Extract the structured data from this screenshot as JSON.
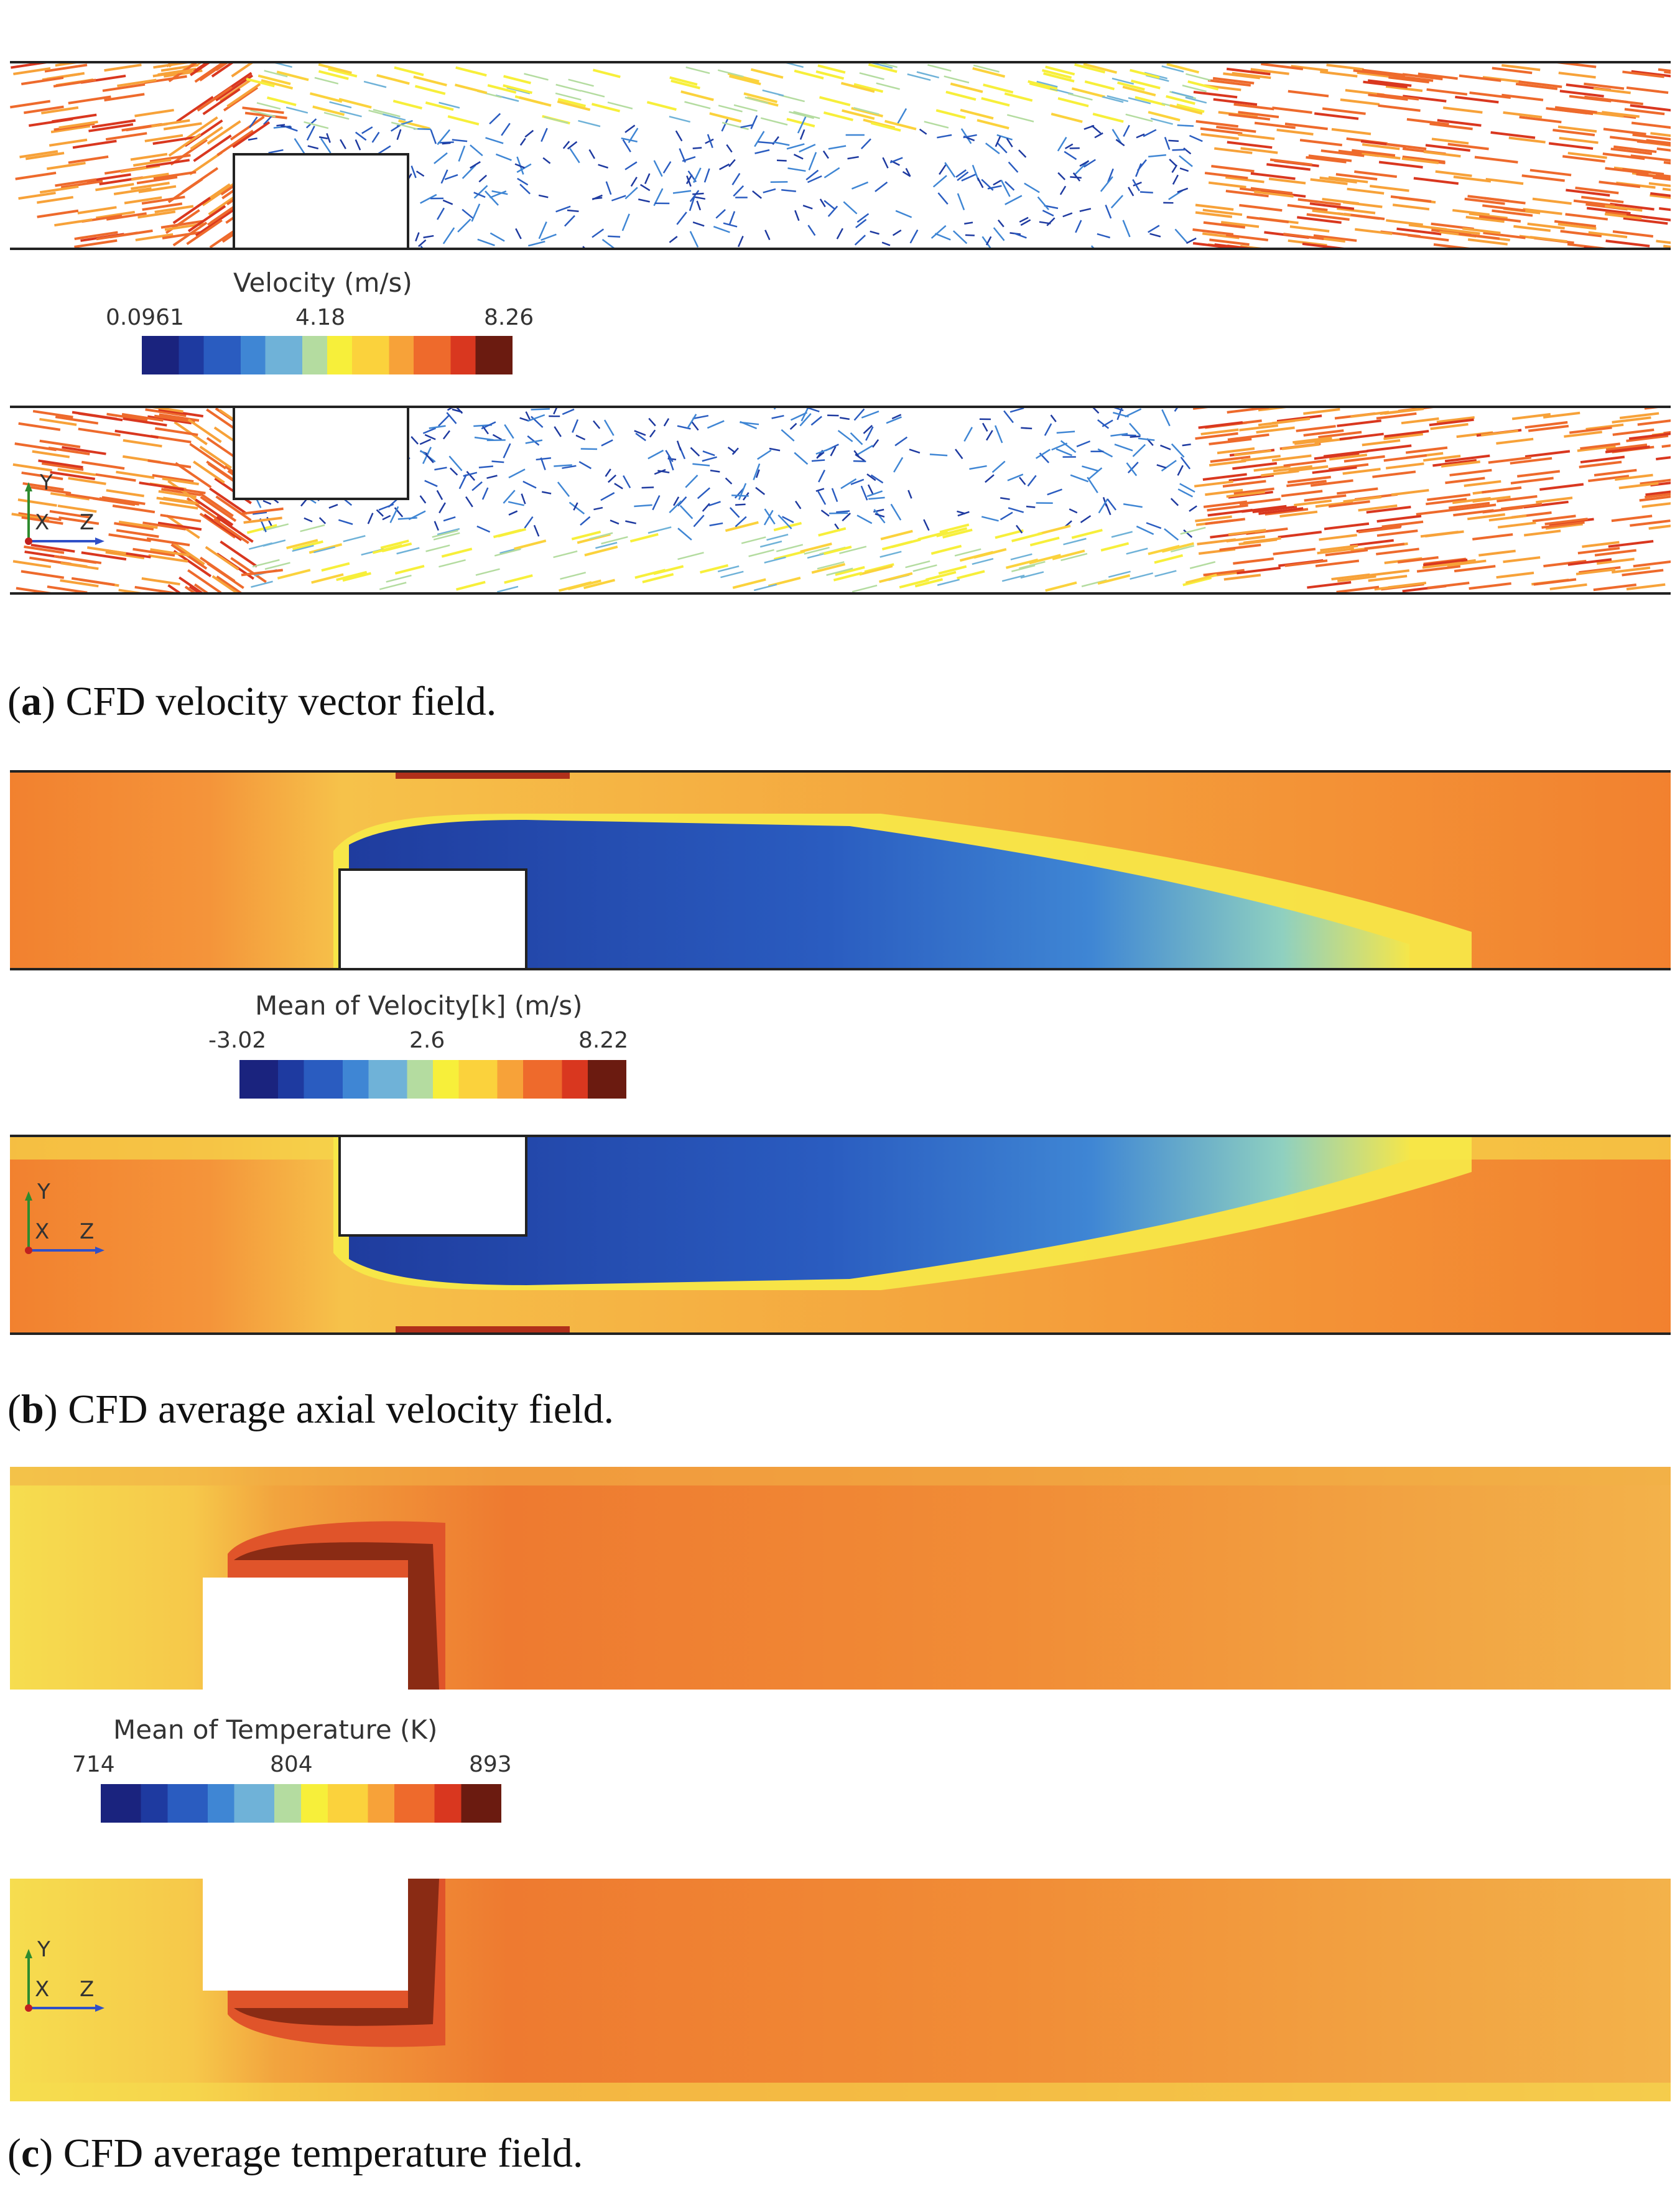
{
  "panels": [
    {
      "id": "a",
      "caption_letter": "a",
      "caption_text": " CFD velocity vector field.",
      "legend": {
        "title": "Velocity (m/s)",
        "min": "0.0961",
        "mid": "4.18",
        "max": "8.26"
      }
    },
    {
      "id": "b",
      "caption_letter": "b",
      "caption_text": " CFD average axial velocity field.",
      "legend": {
        "title": "Mean of Velocity[k] (m/s)",
        "min": "-3.02",
        "mid": "2.6",
        "max": "8.22"
      }
    },
    {
      "id": "c",
      "caption_letter": "c",
      "caption_text": " CFD average temperature field.",
      "legend": {
        "title": "Mean of Temperature (K)",
        "min": "714",
        "mid": "804",
        "max": "893"
      }
    }
  ],
  "axes": {
    "y": "Y",
    "x": "X",
    "z": "Z"
  },
  "colors": {
    "colormap": [
      "#1a237e",
      "#1e3aa0",
      "#2a5cc0",
      "#3f86d4",
      "#6fb2d8",
      "#b4dca0",
      "#f7ef3a",
      "#fbd23c",
      "#f7a239",
      "#ee6a2c",
      "#d9371f",
      "#6b1b10"
    ],
    "hot": "#f2812f",
    "warm": "#f4a43a",
    "yellow": "#f5d64a",
    "blue_dark": "#1f3c9e",
    "blue": "#3a78c9",
    "red": "#de4c27"
  }
}
